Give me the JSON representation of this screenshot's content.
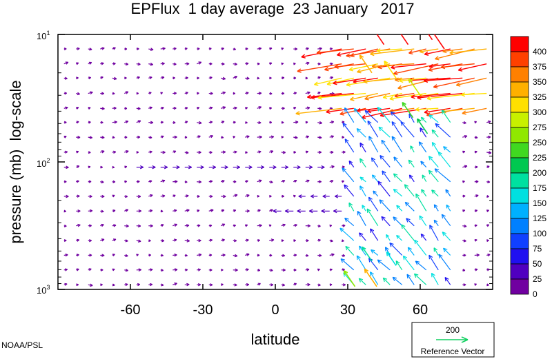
{
  "chart_data": {
    "type": "vector-field",
    "title": "EPFlux  1 day average  23 January   2017",
    "xlabel": "latitude",
    "ylabel": "pressure (mb)  log-scale",
    "xlim": [
      -90,
      90
    ],
    "ylim_pressure": [
      1000,
      10
    ],
    "y_scale": "log",
    "x_ticks": [
      "-60",
      "-30",
      "0",
      "30",
      "60"
    ],
    "y_ticks": [
      {
        "base": "10",
        "exp": "1",
        "value": 10
      },
      {
        "base": "10",
        "exp": "2",
        "value": 100
      },
      {
        "base": "10",
        "exp": "3",
        "value": 1000
      }
    ],
    "colorbar": {
      "levels": [
        "400",
        "375",
        "350",
        "325",
        "300",
        "275",
        "250",
        "225",
        "200",
        "175",
        "150",
        "125",
        "100",
        "75",
        "50",
        "25",
        "0"
      ],
      "colors": [
        "#ff0000",
        "#ff4000",
        "#ff8000",
        "#ffb000",
        "#ffe000",
        "#c8f000",
        "#90e800",
        "#40d820",
        "#00c850",
        "#00e0a0",
        "#00e0e0",
        "#00b0ff",
        "#0080ff",
        "#1040ff",
        "#2010f0",
        "#5000c0",
        "#7000a0"
      ]
    },
    "reference_vector": {
      "value": "200",
      "label": "Reference Vector"
    },
    "notable_vectors": [
      {
        "lat": 45,
        "p": 12,
        "magnitude": 400
      },
      {
        "lat": 55,
        "p": 12,
        "magnitude": 400
      },
      {
        "lat": 65,
        "p": 11,
        "magnitude": 400
      },
      {
        "lat": 70,
        "p": 13,
        "magnitude": 400
      },
      {
        "lat": 40,
        "p": 20,
        "magnitude": 325
      },
      {
        "lat": 50,
        "p": 22,
        "magnitude": 300
      },
      {
        "lat": 60,
        "p": 30,
        "magnitude": 275
      },
      {
        "lat": 57,
        "p": 45,
        "magnitude": 225
      },
      {
        "lat": 63,
        "p": 60,
        "magnitude": 200
      },
      {
        "lat": 40,
        "p": 600,
        "magnitude": 175
      },
      {
        "lat": 50,
        "p": 650,
        "magnitude": 150
      },
      {
        "lat": 33,
        "p": 950,
        "magnitude": 250
      },
      {
        "lat": 42,
        "p": 950,
        "magnitude": 325
      }
    ]
  },
  "credit": "NOAA/PSL"
}
